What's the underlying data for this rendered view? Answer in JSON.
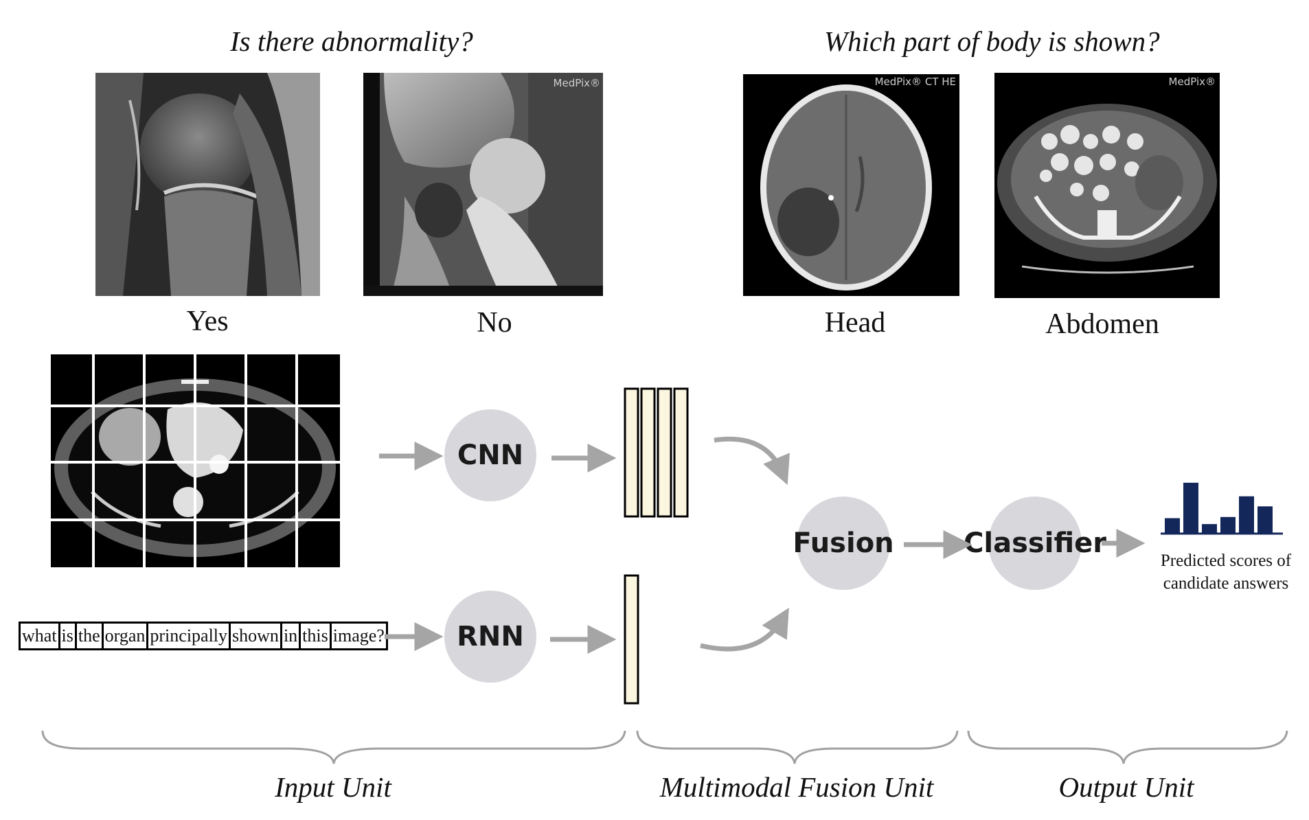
{
  "questions": {
    "left": "Is there abnormality?",
    "right": "Which part of body is shown?"
  },
  "examples": [
    {
      "caption": "Yes",
      "watermark": ""
    },
    {
      "caption": "No",
      "watermark": "MedPix®"
    },
    {
      "caption": "Head",
      "watermark": "MedPix® CT HE"
    },
    {
      "caption": "Abdomen",
      "watermark": "MedPix®"
    }
  ],
  "pipeline": {
    "cnn_label": "CNN",
    "rnn_label": "RNN",
    "fusion_label": "Fusion",
    "classifier_label": "Classifier",
    "question_words": [
      "what",
      "is",
      "the",
      "organ",
      "principally",
      "shown",
      "in",
      "this",
      "image?"
    ],
    "output_caption_line1": "Predicted scores of",
    "output_caption_line2": "candidate answers",
    "score_bars": [
      0.25,
      0.85,
      0.15,
      0.27,
      0.62,
      0.45
    ],
    "image_feature_count": 4,
    "text_feature_count": 1
  },
  "units": {
    "input": "Input Unit",
    "fusion": "Multimodal Fusion Unit",
    "output": "Output Unit"
  },
  "colors": {
    "arrow": "#a5a5a5",
    "circle": "#d8d7dc",
    "feature_fill": "#fbf6df",
    "bar": "#14275a",
    "brace": "#a0a0a0"
  }
}
